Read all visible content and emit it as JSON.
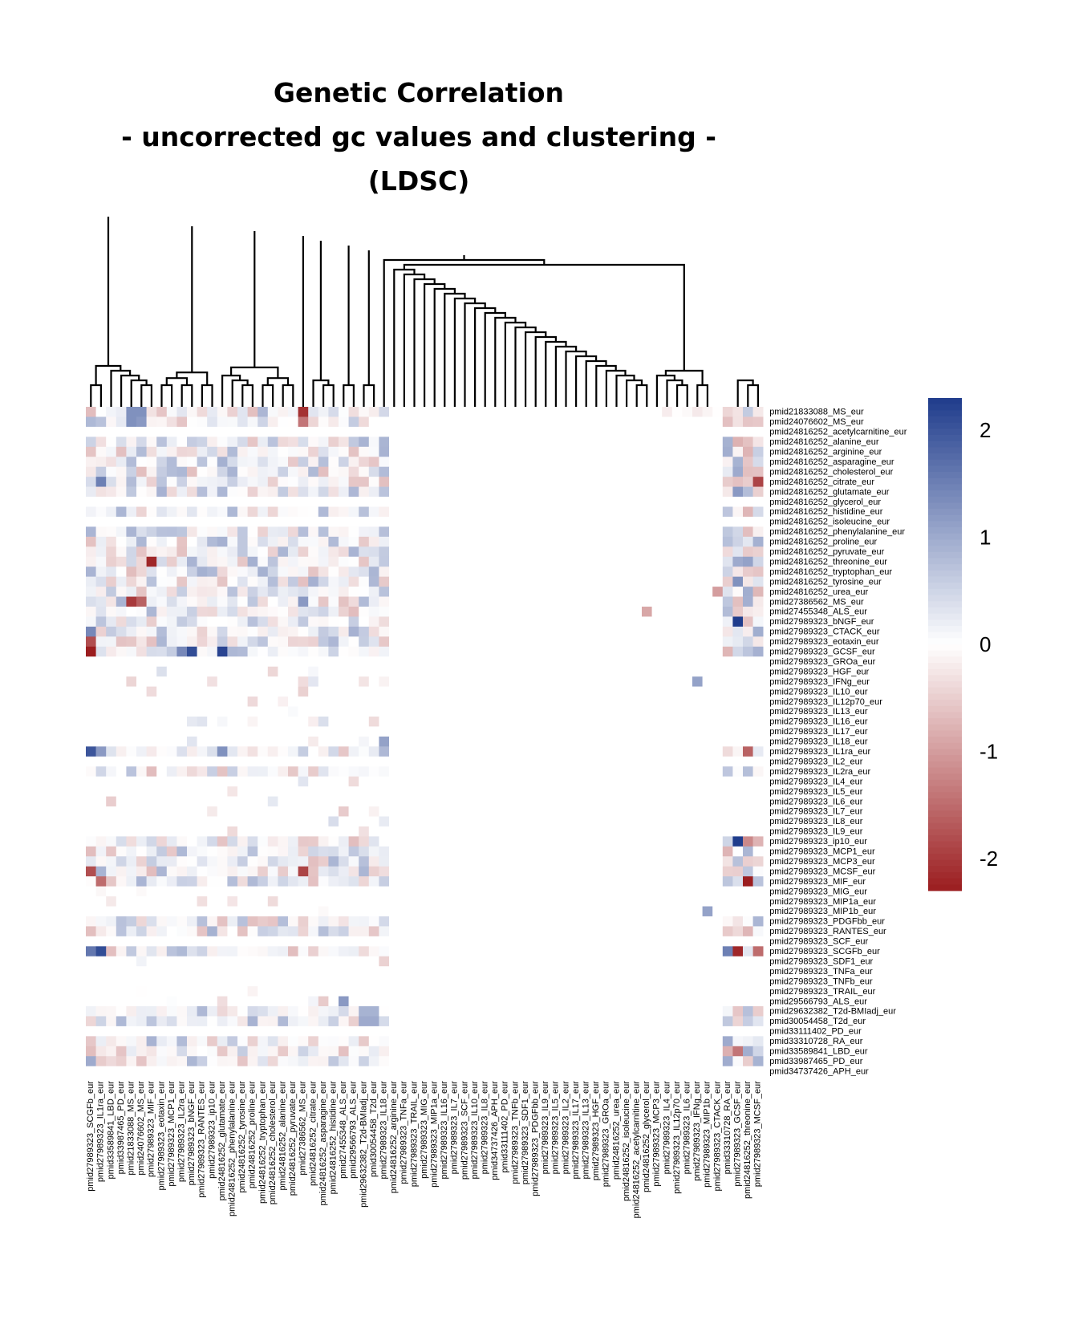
{
  "chart_data": {
    "type": "heatmap",
    "title_lines": [
      "Genetic Correlation",
      "- uncorrected gc values and clustering -",
      "(LDSC)"
    ],
    "row_labels": [
      "pmid21833088_MS_eur",
      "pmid24076602_MS_eur",
      "pmid24816252_acetylcarnitine_eur",
      "pmid24816252_alanine_eur",
      "pmid24816252_arginine_eur",
      "pmid24816252_asparagine_eur",
      "pmid24816252_cholesterol_eur",
      "pmid24816252_citrate_eur",
      "pmid24816252_glutamate_eur",
      "pmid24816252_glycerol_eur",
      "pmid24816252_histidine_eur",
      "pmid24816252_isoleucine_eur",
      "pmid24816252_phenylalanine_eur",
      "pmid24816252_proline_eur",
      "pmid24816252_pyruvate_eur",
      "pmid24816252_threonine_eur",
      "pmid24816252_tryptophan_eur",
      "pmid24816252_tyrosine_eur",
      "pmid24816252_urea_eur",
      "pmid27386562_MS_eur",
      "pmid27455348_ALS_eur",
      "pmid27989323_bNGF_eur",
      "pmid27989323_CTACK_eur",
      "pmid27989323_eotaxin_eur",
      "pmid27989323_GCSF_eur",
      "pmid27989323_GROa_eur",
      "pmid27989323_HGF_eur",
      "pmid27989323_IFNg_eur",
      "pmid27989323_IL10_eur",
      "pmid27989323_IL12p70_eur",
      "pmid27989323_IL13_eur",
      "pmid27989323_IL16_eur",
      "pmid27989323_IL17_eur",
      "pmid27989323_IL18_eur",
      "pmid27989323_IL1ra_eur",
      "pmid27989323_IL2_eur",
      "pmid27989323_IL2ra_eur",
      "pmid27989323_IL4_eur",
      "pmid27989323_IL5_eur",
      "pmid27989323_IL6_eur",
      "pmid27989323_IL7_eur",
      "pmid27989323_IL8_eur",
      "pmid27989323_IL9_eur",
      "pmid27989323_ip10_eur",
      "pmid27989323_MCP1_eur",
      "pmid27989323_MCP3_eur",
      "pmid27989323_MCSF_eur",
      "pmid27989323_MIF_eur",
      "pmid27989323_MIG_eur",
      "pmid27989323_MIP1a_eur",
      "pmid27989323_MIP1b_eur",
      "pmid27989323_PDGFbb_eur",
      "pmid27989323_RANTES_eur",
      "pmid27989323_SCF_eur",
      "pmid27989323_SCGFb_eur",
      "pmid27989323_SDF1_eur",
      "pmid27989323_TNFa_eur",
      "pmid27989323_TNFb_eur",
      "pmid27989323_TRAIL_eur",
      "pmid29566793_ALS_eur",
      "pmid29632382_T2d-BMIadj_eur",
      "pmid30054458_T2d_eur",
      "pmid33111402_PD_eur",
      "pmid33310728_RA_eur",
      "pmid33589841_LBD_eur",
      "pmid33987465_PD_eur",
      "pmid34737426_APH_eur"
    ],
    "col_labels": [
      "pmid27989323_SCGFb_eur",
      "pmid27989323_IL1ra_eur",
      "pmid33589841_LBD_eur",
      "pmid33987465_PD_eur",
      "pmid21833088_MS_eur",
      "pmid24076602_MS_eur",
      "pmid27989323_MIF_eur",
      "pmid27989323_eotaxin_eur",
      "pmid27989323_MCP1_eur",
      "pmid27989323_IL2ra_eur",
      "pmid27989323_bNGF_eur",
      "pmid27989323_RANTES_eur",
      "pmid27989323_ip10_eur",
      "pmid24816252_glutamate_eur",
      "pmid24816252_phenylalanine_eur",
      "pmid24816252_tyrosine_eur",
      "pmid24816252_proline_eur",
      "pmid24816252_tryptophan_eur",
      "pmid24816252_cholesterol_eur",
      "pmid24816252_alanine_eur",
      "pmid24816252_pyruvate_eur",
      "pmid27386562_MS_eur",
      "pmid24816252_citrate_eur",
      "pmid24816252_asparagine_eur",
      "pmid24816252_histidine_eur",
      "pmid27455348_ALS_eur",
      "pmid29566793_ALS_eur",
      "pmid29632382_T2d-BMIadj_eur",
      "pmid30054458_T2d_eur",
      "pmid27989323_IL18_eur",
      "pmid24816252_arginine_eur",
      "pmid27989323_TNFa_eur",
      "pmid27989323_TRAIL_eur",
      "pmid27989323_MIG_eur",
      "pmid27989323_MIP1a_eur",
      "pmid27989323_IL16_eur",
      "pmid27989323_IL7_eur",
      "pmid27989323_SCF_eur",
      "pmid27989323_IL10_eur",
      "pmid27989323_IL8_eur",
      "pmid34737426_APH_eur",
      "pmid33111402_PD_eur",
      "pmid27989323_TNFb_eur",
      "pmid27989323_SDF1_eur",
      "pmid27989323_PDGFbb_eur",
      "pmid27989323_IL9_eur",
      "pmid27989323_IL5_eur",
      "pmid27989323_IL2_eur",
      "pmid27989323_IL17_eur",
      "pmid27989323_IL13_eur",
      "pmid27989323_HGF_eur",
      "pmid27989323_GROa_eur",
      "pmid24816252_urea_eur",
      "pmid24816252_isoleucine_eur",
      "pmid24816252_acetylcarnitine_eur",
      "pmid24816252_glycerol_eur",
      "pmid27989323_MCP3_eur",
      "pmid27989323_IL4_eur",
      "pmid27989323_IL12p70_eur",
      "pmid27989323_IL6_eur",
      "pmid27989323_IFNg_eur",
      "pmid27989323_MIP1b_eur",
      "pmid27989323_CTACK_eur",
      "pmid33310728_RA_eur",
      "pmid27989323_GCSF_eur",
      "pmid24816252_threonine_eur",
      "pmid27989323_MCSF_eur"
    ],
    "value_range": [
      -2.3,
      2.3
    ],
    "colorscale": {
      "low": "#9b1d1f",
      "mid": "#ffffff",
      "high": "#1f3c8c"
    },
    "legend_ticks": [
      2,
      1,
      0,
      -1,
      -2
    ],
    "legend_tick_labels": [
      "2",
      "1",
      "0",
      "-1",
      "-2"
    ],
    "legend_position": "right",
    "column_dendrogram": true
  }
}
